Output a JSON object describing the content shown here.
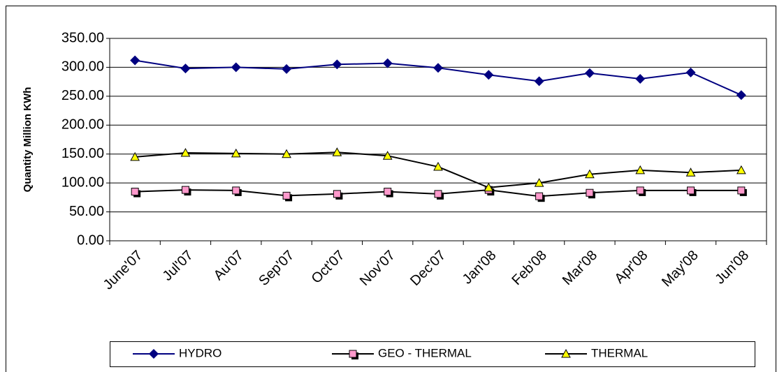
{
  "chart_data": {
    "type": "line",
    "y_label": "Quantity Million KWh",
    "categories": [
      "June'07",
      "Jul'07",
      "Au'07",
      "Sep'07",
      "Oct'07",
      "Nov'07",
      "Dec'07",
      "Jan'08",
      "Feb'08",
      "Mar'08",
      "Apr'08",
      "May'08",
      "Jun'08"
    ],
    "series": [
      {
        "name": "HYDRO",
        "color": "#000080",
        "marker": "diamond",
        "marker_color": "#000080",
        "values": [
          312,
          298,
          300,
          297,
          305,
          307,
          299,
          287,
          276,
          290,
          280,
          291,
          252
        ]
      },
      {
        "name": "GEO - THERMAL",
        "color": "#000000",
        "marker": "square",
        "marker_color": "#ff99cc",
        "values": [
          85,
          88,
          87,
          78,
          81,
          85,
          81,
          88,
          77,
          83,
          87,
          87,
          87
        ]
      },
      {
        "name": "THERMAL",
        "color": "#000000",
        "marker": "triangle",
        "marker_color": "#ffff00",
        "values": [
          145,
          152,
          151,
          150,
          153,
          147,
          128,
          92,
          100,
          115,
          122,
          118,
          122
        ]
      }
    ],
    "ylim": [
      0,
      350
    ],
    "yticks": [
      {
        "value": 0,
        "label": "0.00"
      },
      {
        "value": 50,
        "label": "50.00"
      },
      {
        "value": 100,
        "label": "100.00"
      },
      {
        "value": 150,
        "label": "150.00"
      },
      {
        "value": 200,
        "label": "200.00"
      },
      {
        "value": 250,
        "label": "250.00"
      },
      {
        "value": 300,
        "label": "300.00"
      },
      {
        "value": 350,
        "label": "350.00"
      }
    ],
    "grid": true,
    "legend": "bottom"
  }
}
